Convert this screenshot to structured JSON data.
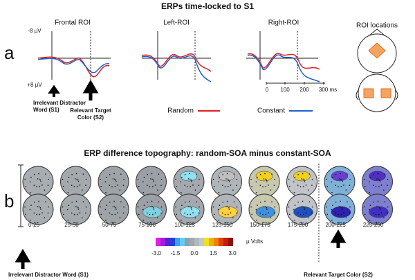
{
  "title": "ERPs time-locked to S1",
  "panel_a": {
    "label": "a",
    "rois": [
      "Frontal ROI",
      "Left-ROI",
      "Right-ROI"
    ],
    "roi_locations": "ROI locations",
    "y_top": "-8 µV",
    "y_bottom": "+8 µV",
    "time_ticks": [
      "0",
      "100",
      "200",
      "300 ms"
    ],
    "s1_label": [
      "Irrelevant Distractor",
      "Word (S1)"
    ],
    "s2_label": [
      "Relevant Target",
      "Color (S2)"
    ],
    "legend": [
      "Random",
      "Constant"
    ]
  },
  "panel_b": {
    "label": "b",
    "title": "ERP difference topography: random-SOA minus constant-SOA",
    "windows": [
      "0-25",
      "25-50",
      "50-75",
      "75-100",
      "100-125",
      "125-150",
      "150-175",
      "175-200",
      "200-225",
      "225-250"
    ],
    "colorbar_ticks": [
      "-3.0",
      "-1.5",
      "0.0",
      "1.5",
      "3.0"
    ],
    "colorbar_unit": "µ Volts",
    "s1_label": "Irrelevant Distractor Word (S1)",
    "s2_label": "Relevant Target Color (S2)"
  }
}
